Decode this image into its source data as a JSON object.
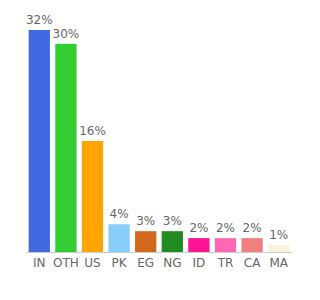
{
  "chart_data": {
    "type": "bar",
    "categories": [
      "IN",
      "OTH",
      "US",
      "PK",
      "EG",
      "NG",
      "ID",
      "TR",
      "CA",
      "MA"
    ],
    "values": [
      32,
      30,
      16,
      4,
      3,
      3,
      2,
      2,
      2,
      1
    ],
    "value_labels": [
      "32%",
      "30%",
      "16%",
      "4%",
      "3%",
      "3%",
      "2%",
      "2%",
      "2%",
      "1%"
    ],
    "colors": [
      "#4169e1",
      "#32cd32",
      "#ffa500",
      "#87cefa",
      "#d2691e",
      "#228b22",
      "#ff1493",
      "#ff69b4",
      "#f08080",
      "#f5f5dc"
    ],
    "data_labels": true,
    "tick_labels": "x"
  }
}
